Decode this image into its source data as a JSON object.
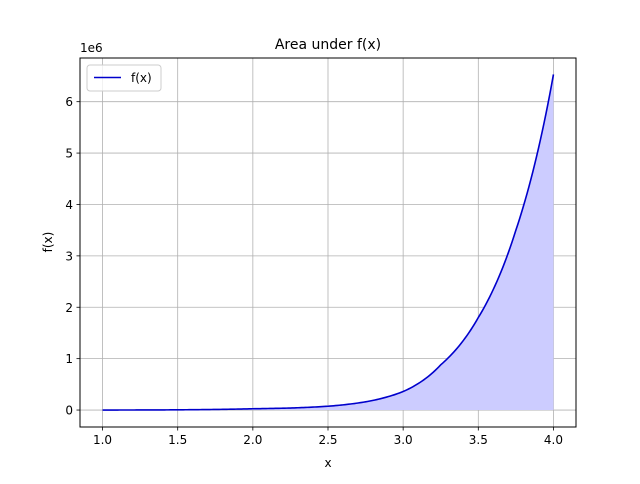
{
  "chart_data": {
    "type": "area",
    "title": "Area under f(x)",
    "xlabel": "x",
    "ylabel": "f(x)",
    "y_offset_label": "1e6",
    "xlim": [
      0.85,
      4.15
    ],
    "ylim": [
      -0.33,
      6.85
    ],
    "y_scale_factor": 1000000,
    "x_ticks": [
      1.0,
      1.5,
      2.0,
      2.5,
      3.0,
      3.5,
      4.0
    ],
    "x_tick_labels": [
      "1.0",
      "1.5",
      "2.0",
      "2.5",
      "3.0",
      "3.5",
      "4.0"
    ],
    "y_ticks": [
      0,
      1,
      2,
      3,
      4,
      5,
      6
    ],
    "y_tick_labels": [
      "0",
      "1",
      "2",
      "3",
      "4",
      "5",
      "6"
    ],
    "grid": true,
    "legend": {
      "position": "top-left",
      "entries": [
        "f(x)"
      ]
    },
    "series": [
      {
        "name": "f(x)",
        "color": "#0000cc",
        "fill_color": "#ccccff",
        "x": [
          1.0,
          1.25,
          1.5,
          1.75,
          2.0,
          2.25,
          2.5,
          2.75,
          3.0,
          3.25,
          3.5,
          3.75,
          4.0
        ],
        "y": [
          0,
          0.0012,
          0.0045,
          0.0115,
          0.025,
          0.039,
          0.074,
          0.16,
          0.36,
          0.88,
          1.8,
          3.5,
          6.53
        ]
      }
    ]
  }
}
